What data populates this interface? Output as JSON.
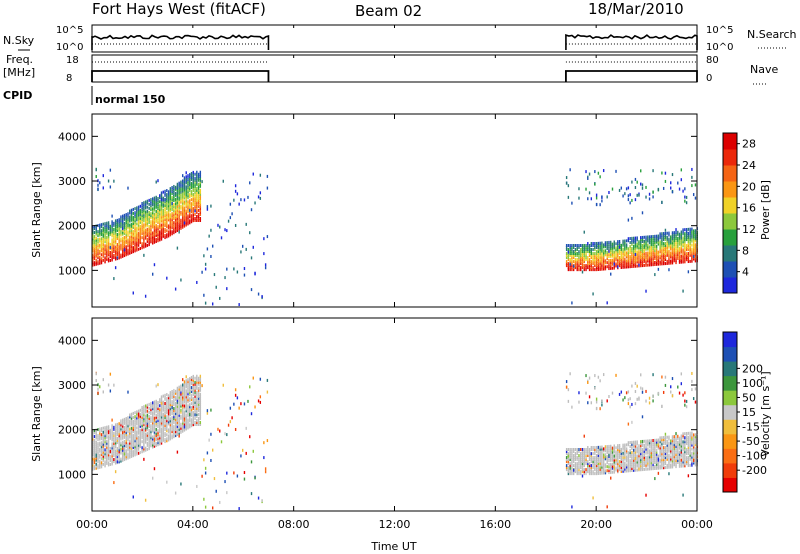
{
  "header": {
    "station": "Fort Hays West (fitACF)",
    "beam": "Beam 02",
    "date": "18/Mar/2010"
  },
  "strips": {
    "nsky_label": "N.Sky",
    "nsky_ticks": [
      "10^5",
      "10^0"
    ],
    "nsearch_label": "N.Search",
    "nsearch_ticks": [
      "10^5",
      "10^0"
    ],
    "freq_label_1": "Freq.",
    "freq_label_2": "[MHz]",
    "freq_ticks": [
      "18",
      "8"
    ],
    "nave_label": "Nave",
    "nave_ticks": [
      "80",
      "0"
    ],
    "cpid_label": "CPID",
    "cpid_value": "normal 150"
  },
  "colors": {
    "power": [
      "#1e28dc",
      "#1e50b4",
      "#287878",
      "#28a03c",
      "#8cc83c",
      "#f0d228",
      "#fa9614",
      "#f56414",
      "#eb280a",
      "#dc0000"
    ],
    "velocity": [
      "#e60000",
      "#f03c0a",
      "#fa6e14",
      "#fa9614",
      "#f0be3c",
      "#c8c8c8",
      "#8cc83c",
      "#3c963c",
      "#287878",
      "#1e50b4",
      "#1e28dc"
    ],
    "ground_scatter": "#bebebe"
  },
  "chart_data": [
    {
      "name": "power",
      "type": "heatmap",
      "xlabel": "Time UT",
      "ylabel": "Slant Range [km]",
      "colorbar_label": "Power [dB]",
      "colorbar_ticks": [
        "4",
        "8",
        "12",
        "16",
        "20",
        "24",
        "28"
      ],
      "colorbar_range": [
        0,
        30
      ],
      "xlim": [
        0,
        24
      ],
      "ylim": [
        180,
        4500
      ],
      "x_ticks": [
        "00:00",
        "04:00",
        "08:00",
        "12:00",
        "16:00",
        "20:00",
        "00:00"
      ],
      "y_ticks": [
        "1000",
        "2000",
        "3000",
        "4000"
      ],
      "data_intervals_h": [
        [
          0.0,
          7.0
        ],
        [
          18.8,
          24.0
        ]
      ],
      "dense_band": [
        {
          "x": 0.0,
          "lower_km": 1150,
          "upper_km": 2050
        },
        {
          "x": 1.0,
          "lower_km": 1300,
          "upper_km": 2200
        },
        {
          "x": 2.0,
          "lower_km": 1550,
          "upper_km": 2550
        },
        {
          "x": 3.0,
          "lower_km": 1800,
          "upper_km": 2850
        },
        {
          "x": 4.0,
          "lower_km": 2150,
          "upper_km": 3250
        },
        {
          "x": 18.8,
          "lower_km": 1050,
          "upper_km": 1600
        },
        {
          "x": 20.0,
          "lower_km": 1050,
          "upper_km": 1650
        },
        {
          "x": 22.0,
          "lower_km": 1150,
          "upper_km": 1800
        },
        {
          "x": 24.0,
          "lower_km": 1250,
          "upper_km": 2000
        }
      ],
      "upper_band": [
        {
          "x": 0.0,
          "range_km": [
            2800,
            3300
          ]
        },
        {
          "x": 18.8,
          "range_km": [
            2500,
            3300
          ]
        },
        {
          "x": 24.0,
          "range_km": [
            2500,
            3300
          ]
        }
      ]
    },
    {
      "name": "velocity",
      "type": "heatmap",
      "xlabel": "Time UT",
      "ylabel": "Slant Range [km]",
      "colorbar_label": "Velocity [m s⁻¹]",
      "colorbar_ticks": [
        "-200",
        "-100",
        "-50",
        "-15",
        "15",
        "50",
        "100",
        "200"
      ],
      "xlim": [
        0,
        24
      ],
      "ylim": [
        180,
        4500
      ],
      "x_ticks": [
        "00:00",
        "04:00",
        "08:00",
        "12:00",
        "16:00",
        "20:00",
        "00:00"
      ],
      "y_ticks": [
        "1000",
        "2000",
        "3000",
        "4000"
      ],
      "note_ground_scatter": "grey"
    }
  ]
}
